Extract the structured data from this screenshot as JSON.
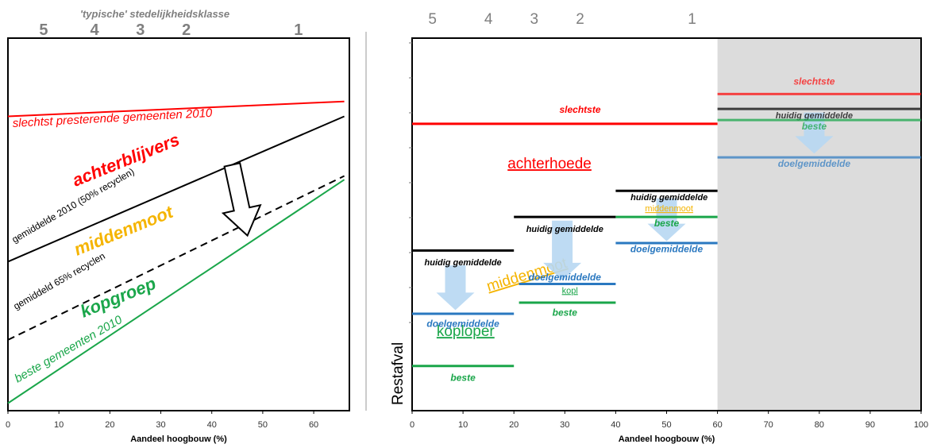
{
  "chart_data": [
    {
      "type": "line",
      "title": "'typische' stedelijkheidsklasse",
      "xlabel": "Aandeel hoogbouw (%)",
      "ylabel": "",
      "xlim": [
        0,
        67
      ],
      "ylim": [
        0,
        100
      ],
      "x_ticks": [
        0,
        10,
        20,
        30,
        40,
        50,
        60
      ],
      "grid": false,
      "class_axis": [
        {
          "label": "5",
          "x": 7
        },
        {
          "label": "4",
          "x": 17
        },
        {
          "label": "3",
          "x": 26
        },
        {
          "label": "2",
          "x": 35
        },
        {
          "label": "1",
          "x": 57
        }
      ],
      "series": [
        {
          "name": "slechtst presterende gemeenten 2010",
          "x": [
            0,
            66
          ],
          "y": [
            79,
            83
          ],
          "color": "#ff0000",
          "dash": false,
          "label_color": "#ff0000"
        },
        {
          "name": "gemiddelde  2010 (50% recyclen)",
          "x": [
            0,
            66
          ],
          "y": [
            40,
            79
          ],
          "color": "#000000",
          "dash": false,
          "label_color": "#000000"
        },
        {
          "name": "gemiddeld 65% recyclen",
          "x": [
            0,
            66
          ],
          "y": [
            19,
            63
          ],
          "color": "#000000",
          "dash": true,
          "label_color": "#000000"
        },
        {
          "name": "beste gemeenten 2010",
          "x": [
            0,
            66
          ],
          "y": [
            2,
            62
          ],
          "color": "#1aa64a",
          "dash": false,
          "label_color": "#1aa64a"
        }
      ],
      "zones": [
        {
          "label": "achterblijvers",
          "color": "#ff0000"
        },
        {
          "label": "middenmoot",
          "color": "#f5b400"
        },
        {
          "label": "kopgroep",
          "color": "#1aa64a"
        }
      ],
      "arrow": {
        "from": [
          44,
          66
        ],
        "to": [
          47,
          47
        ]
      }
    },
    {
      "type": "step",
      "title": "",
      "xlabel": "Aandeel hoogbouw (%)",
      "ylabel": "Restafval",
      "xlim": [
        0,
        100
      ],
      "ylim": [
        0,
        100
      ],
      "x_ticks": [
        0,
        10,
        20,
        30,
        40,
        50,
        60,
        70,
        80,
        90,
        100
      ],
      "grid": false,
      "class_axis": [
        {
          "label": "5",
          "x": 4
        },
        {
          "label": "4",
          "x": 15
        },
        {
          "label": "3",
          "x": 24
        },
        {
          "label": "2",
          "x": 33
        },
        {
          "label": "1",
          "x": 55
        }
      ],
      "shaded_region": {
        "x": [
          60,
          100
        ],
        "color": "#dcdcdc"
      },
      "slechtste": {
        "name": "slechtste",
        "x": [
          0,
          60
        ],
        "y": 77,
        "color": "#ff0000"
      },
      "segments": [
        {
          "x": [
            0,
            20
          ],
          "huidig": 43,
          "doel": 26,
          "beste": 12,
          "kop": 27,
          "kop_label": "",
          "mid_label": ""
        },
        {
          "x": [
            21,
            40
          ],
          "huidig": 52,
          "doel": 34,
          "beste": 29,
          "kop": 29,
          "kop_label": "kopl",
          "mid_label": ""
        },
        {
          "x": [
            40,
            60
          ],
          "huidig": 59,
          "doel": 45,
          "beste": 52,
          "kop": 52,
          "kop_label": "",
          "mid_label": "middenmoot"
        }
      ],
      "right_segment": {
        "x": [
          60,
          100
        ],
        "slechtste": 85,
        "huidig": 81,
        "beste": 78,
        "doel": 68
      },
      "labels": {
        "slechtste": "slechtste",
        "huidig": "huidig gemiddelde",
        "doel": "doelgemiddelde",
        "beste": "beste",
        "kopl": "kopl"
      },
      "zones": [
        {
          "label": "achterhoede",
          "color": "#ff0000"
        },
        {
          "label": "middenmoot",
          "color": "#f5b400"
        },
        {
          "label": "koploper",
          "color": "#1aa64a"
        }
      ]
    }
  ],
  "colors": {
    "red": "#ff0000",
    "black": "#000000",
    "green": "#1aa64a",
    "blue": "#2a78c0",
    "orange": "#f5b400",
    "arrow": "#b7d7f2",
    "grey_text": "#7f7f7f"
  }
}
